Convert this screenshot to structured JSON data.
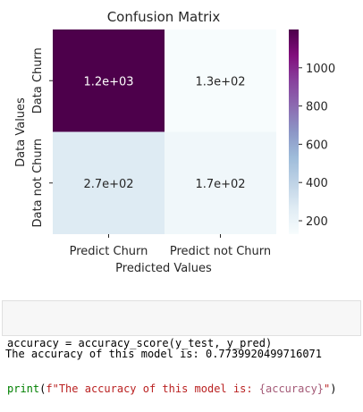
{
  "chart_data": {
    "type": "heatmap",
    "title": "Confusion Matrix",
    "xlabel": "Predicted Values",
    "ylabel": "Data Values",
    "x_categories": [
      "Predict Churn",
      "Predict not Churn"
    ],
    "y_categories": [
      "Data Churn",
      "Data not Churn"
    ],
    "values": [
      [
        1200,
        130
      ],
      [
        270,
        170
      ]
    ],
    "annotations": [
      [
        "1.2e+03",
        "1.3e+02"
      ],
      [
        "2.7e+02",
        "1.7e+02"
      ]
    ],
    "colorbar": {
      "min": 130,
      "max": 1200,
      "ticks": [
        200,
        400,
        600,
        800,
        1000
      ],
      "tick_labels": [
        "200",
        "400",
        "600",
        "800",
        "1000"
      ],
      "colormap": "BuPu",
      "colors": [
        "#f7fcfd",
        "#e0ecf4",
        "#bfd3e6",
        "#9ebcda",
        "#8c96c6",
        "#8c6bb1",
        "#88419d",
        "#810f7c",
        "#4d004b"
      ]
    }
  },
  "code_cell": {
    "line1": {
      "var": "accuracy",
      "eq": " = ",
      "call": "accuracy_score(y_test, y_pred)"
    },
    "line2": {
      "builtin": "print",
      "open": "(",
      "fprefix": "f",
      "str_a": "\"The accuracy of this model is: ",
      "fmt": "{accuracy}",
      "str_b": "\"",
      "close": ")"
    }
  },
  "output": {
    "text": "The accuracy of this model is: 0.7739920499716071"
  }
}
